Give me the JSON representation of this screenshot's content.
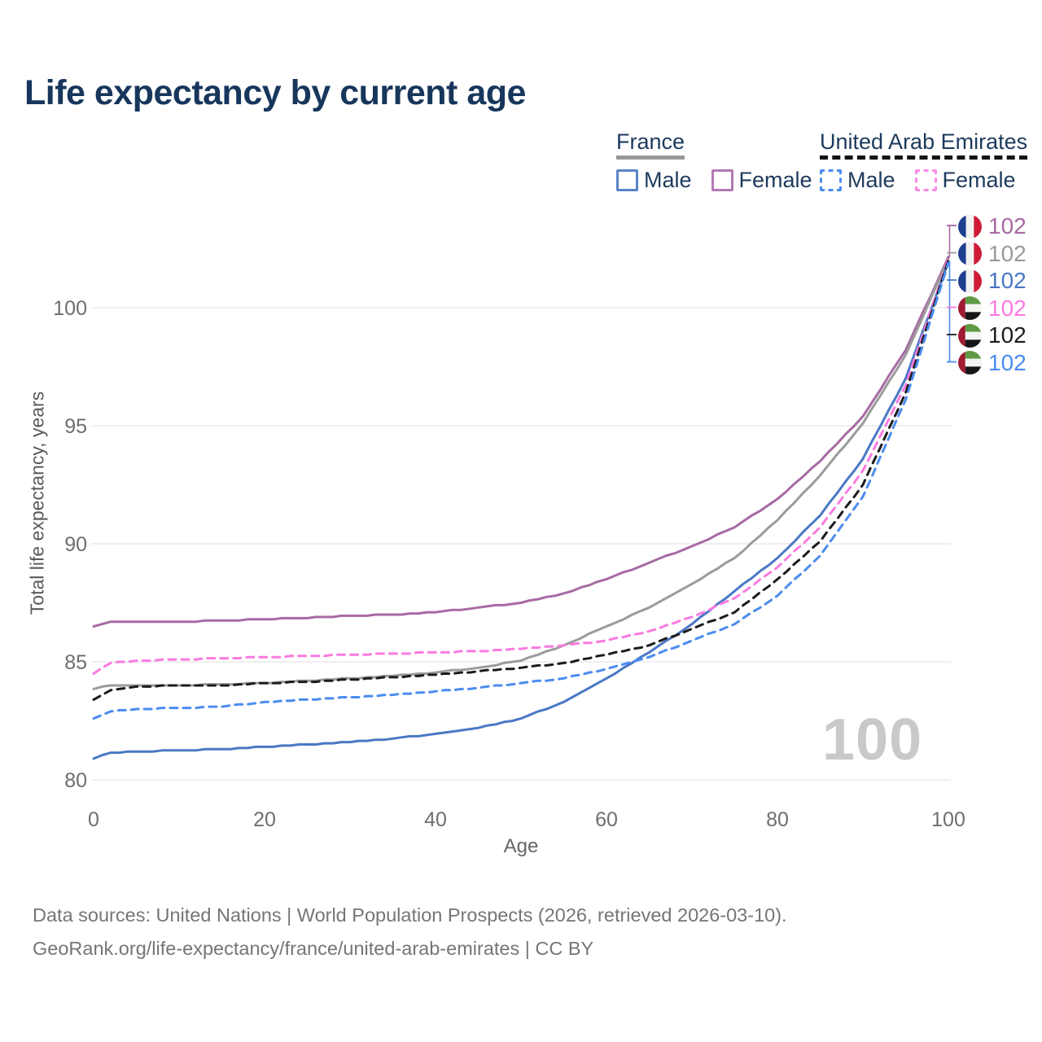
{
  "title": "Life expectancy by current age",
  "legend": {
    "groups": [
      {
        "label": "France",
        "underline": "solid",
        "items": [
          {
            "label": "Male",
            "color": "#5b84c6",
            "dashed": false
          },
          {
            "label": "Female",
            "color": "#b27ab2",
            "dashed": false
          }
        ]
      },
      {
        "label": "United Arab Emirates",
        "underline": "dashed",
        "items": [
          {
            "label": "Male",
            "color": "#4b8cf0",
            "dashed": true
          },
          {
            "label": "Female",
            "color": "#fb8ae8",
            "dashed": true
          }
        ]
      }
    ]
  },
  "chart_data": {
    "type": "line",
    "title": "Life expectancy by current age",
    "xlabel": "Age",
    "ylabel": "Total life expectancy, years",
    "xlim": [
      0,
      100
    ],
    "ylim": [
      79.5,
      102.5
    ],
    "xticks": [
      0,
      20,
      40,
      60,
      80,
      100
    ],
    "yticks": [
      80,
      85,
      90,
      95,
      100
    ],
    "grid": "horizontal-only",
    "legend_position": "top-right",
    "watermark": "100",
    "x": [
      0,
      2,
      5,
      10,
      15,
      20,
      25,
      30,
      35,
      40,
      45,
      50,
      55,
      60,
      65,
      70,
      75,
      80,
      85,
      90,
      95,
      100
    ],
    "series": [
      {
        "name": "France Female",
        "country": "France",
        "sex": "Female",
        "flag": "fr",
        "color": "#a76aa4",
        "dash": false,
        "end_label": "102",
        "values": [
          86.5,
          86.68,
          86.7,
          86.7,
          86.75,
          86.8,
          86.87,
          86.95,
          87.0,
          87.1,
          87.3,
          87.5,
          87.9,
          88.5,
          89.2,
          89.9,
          90.7,
          91.9,
          93.5,
          95.4,
          98.2,
          102.15
        ]
      },
      {
        "name": "France Average",
        "country": "France",
        "sex": "Both",
        "flag": "fr",
        "color": "#9b9b9b",
        "dash": false,
        "end_label": "102",
        "values": [
          83.85,
          84.0,
          84.0,
          84.0,
          84.05,
          84.1,
          84.2,
          84.3,
          84.4,
          84.55,
          84.75,
          85.05,
          85.7,
          86.5,
          87.3,
          88.3,
          89.4,
          91.0,
          92.9,
          95.1,
          98.0,
          102.05
        ]
      },
      {
        "name": "France Male",
        "country": "France",
        "sex": "Male",
        "flag": "fr",
        "color": "#4a78c4",
        "dash": false,
        "end_label": "102",
        "values": [
          80.9,
          81.15,
          81.2,
          81.25,
          81.3,
          81.4,
          81.5,
          81.6,
          81.75,
          81.95,
          82.2,
          82.6,
          83.3,
          84.3,
          85.4,
          86.6,
          88.0,
          89.4,
          91.2,
          93.6,
          97.0,
          101.95
        ]
      },
      {
        "name": "United Arab Emirates Female",
        "country": "United Arab Emirates",
        "sex": "Female",
        "flag": "uae",
        "color": "#fb7ae1",
        "dash": true,
        "end_label": "102",
        "values": [
          84.5,
          84.95,
          85.05,
          85.1,
          85.15,
          85.2,
          85.25,
          85.3,
          85.35,
          85.4,
          85.45,
          85.55,
          85.7,
          85.9,
          86.3,
          86.9,
          87.7,
          89.0,
          90.7,
          93.1,
          96.7,
          102.1
        ]
      },
      {
        "name": "United Arab Emirates Average",
        "country": "United Arab Emirates",
        "sex": "Both",
        "flag": "uae",
        "color": "#1c1c1c",
        "dash": true,
        "end_label": "102",
        "values": [
          83.4,
          83.8,
          83.95,
          84.0,
          84.0,
          84.1,
          84.15,
          84.25,
          84.35,
          84.45,
          84.6,
          84.75,
          84.95,
          85.3,
          85.7,
          86.4,
          87.1,
          88.5,
          90.1,
          92.5,
          96.4,
          102.0
        ]
      },
      {
        "name": "United Arab Emirates Male",
        "country": "United Arab Emirates",
        "sex": "Male",
        "flag": "uae",
        "color": "#4b8cf0",
        "dash": true,
        "end_label": "102",
        "values": [
          82.6,
          82.9,
          83.0,
          83.05,
          83.1,
          83.3,
          83.4,
          83.5,
          83.6,
          83.75,
          83.9,
          84.1,
          84.3,
          84.7,
          85.2,
          85.9,
          86.6,
          87.8,
          89.5,
          92.0,
          96.1,
          101.9
        ]
      }
    ],
    "flag_colors": {
      "fr": {
        "blue": "#1e3f8f",
        "white": "#f2f2f0",
        "red": "#cf1b36"
      },
      "uae": {
        "red": "#9e1b32",
        "green": "#5f9a44",
        "white": "#f4f4f2",
        "black": "#161616"
      }
    },
    "gridline_color": "#eaeaea",
    "tick_color": "#6e6e6e"
  },
  "footer": {
    "line1": "Data sources: United Nations | World Population Prospects (2026, retrieved 2026-03-10).",
    "line2": "GeoRank.org/life-expectancy/france/united-arab-emirates | CC BY"
  }
}
